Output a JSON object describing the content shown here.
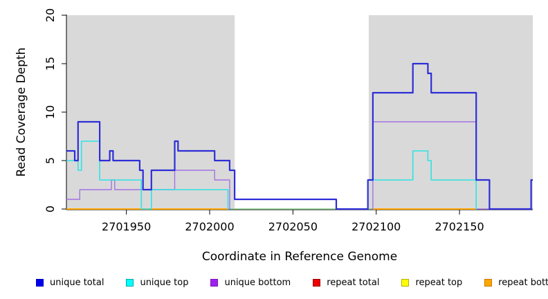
{
  "figure": {
    "xlabel": "Coordinate in Reference Genome",
    "ylabel": "Read Coverage Depth"
  },
  "chart_data": {
    "type": "line",
    "step": true,
    "title": "",
    "xlabel": "Coordinate in Reference Genome",
    "ylabel": "Read Coverage Depth",
    "xlim": [
      2701914,
      2702194
    ],
    "ylim": [
      0,
      20
    ],
    "xticks": [
      2701950,
      2702000,
      2702050,
      2702100,
      2702150
    ],
    "yticks": [
      0,
      5,
      10,
      15,
      20
    ],
    "grid": false,
    "background_color": "#ffffff",
    "shaded_region_color": "#d9d9d9",
    "shaded_regions": [
      {
        "x0": 2701914,
        "x1": 2702015
      },
      {
        "x0": 2702095.5,
        "x1": 2702194
      }
    ],
    "series": [
      {
        "name": "baseline",
        "in_legend": false,
        "color": "#85ca85",
        "width": 1.6,
        "runs": [
          [
            2702011,
            2702098,
            0
          ]
        ]
      },
      {
        "name": "repeat total",
        "in_legend": true,
        "color": "#ee0000",
        "width": 1.4,
        "runs": [
          [
            2701914,
            2702011,
            0
          ],
          [
            2702098,
            2702160,
            0
          ]
        ]
      },
      {
        "name": "repeat top",
        "in_legend": true,
        "color": "#ffff00",
        "width": 1.4,
        "runs": [
          [
            2701914,
            2702011,
            0
          ],
          [
            2702098,
            2702160,
            0
          ]
        ]
      },
      {
        "name": "repeat bottom",
        "in_legend": true,
        "color": "#ffa500",
        "width": 2.0,
        "runs": [
          [
            2701914,
            2702011,
            0
          ],
          [
            2702098,
            2702160,
            0
          ]
        ]
      },
      {
        "name": "unique bottom",
        "in_legend": true,
        "color": "#a273e2",
        "width": 1.4,
        "runs": [
          [
            2701914,
            2701922,
            1
          ],
          [
            2701922,
            2701941,
            2
          ],
          [
            2701941,
            2701943,
            3
          ],
          [
            2701943,
            2701979,
            2
          ],
          [
            2701979,
            2702003,
            4
          ],
          [
            2702003,
            2702012,
            3
          ],
          [
            2702012,
            2702012.5,
            0
          ],
          [
            2702097.5,
            2702098,
            0
          ],
          [
            2702098,
            2702160,
            9
          ],
          [
            2702160,
            2702194,
            0
          ]
        ]
      },
      {
        "name": "unique top",
        "in_legend": true,
        "color": "#2fe2e2",
        "width": 1.6,
        "runs": [
          [
            2701914,
            2701921,
            5
          ],
          [
            2701921,
            2701923,
            4
          ],
          [
            2701923,
            2701934,
            7
          ],
          [
            2701934,
            2701959,
            3
          ],
          [
            2701959,
            2701965,
            0
          ],
          [
            2701965,
            2702011,
            2
          ],
          [
            2702011,
            2702011.5,
            0
          ],
          [
            2702094.5,
            2702095,
            0
          ],
          [
            2702095,
            2702122,
            3
          ],
          [
            2702122,
            2702131,
            6
          ],
          [
            2702131,
            2702133,
            5
          ],
          [
            2702133,
            2702160,
            3
          ],
          [
            2702160,
            2702160.5,
            0
          ]
        ]
      },
      {
        "name": "unique total",
        "in_legend": true,
        "color": "#2d2dd8",
        "width": 2.2,
        "runs": [
          [
            2701914,
            2701919,
            6
          ],
          [
            2701919,
            2701921,
            5
          ],
          [
            2701921,
            2701934,
            9
          ],
          [
            2701934,
            2701940,
            5
          ],
          [
            2701940,
            2701942,
            6
          ],
          [
            2701942,
            2701958,
            5
          ],
          [
            2701958,
            2701960,
            4
          ],
          [
            2701960,
            2701965,
            2
          ],
          [
            2701965,
            2701979,
            4
          ],
          [
            2701979,
            2701981,
            7
          ],
          [
            2701981,
            2702003,
            6
          ],
          [
            2702003,
            2702012,
            5
          ],
          [
            2702012,
            2702015,
            4
          ],
          [
            2702015,
            2702076,
            1
          ],
          [
            2702076,
            2702095,
            0
          ],
          [
            2702095,
            2702098,
            3
          ],
          [
            2702098,
            2702122,
            12
          ],
          [
            2702122,
            2702131,
            15
          ],
          [
            2702131,
            2702133,
            14
          ],
          [
            2702133,
            2702160,
            12
          ],
          [
            2702160,
            2702168,
            3
          ],
          [
            2702168,
            2702193,
            0
          ],
          [
            2702193,
            2702194,
            3
          ]
        ]
      }
    ],
    "legend": [
      {
        "label": "unique total",
        "fill": "#0000ee",
        "border": "#0000b0"
      },
      {
        "label": "unique top",
        "fill": "#00ffff",
        "border": "#00aaaa"
      },
      {
        "label": "unique bottom",
        "fill": "#a020f0",
        "border": "#7716b4"
      },
      {
        "label": "repeat total",
        "fill": "#ee0000",
        "border": "#990000"
      },
      {
        "label": "repeat top",
        "fill": "#ffff00",
        "border": "#b0b000"
      },
      {
        "label": "repeat bottom",
        "fill": "#ffa500",
        "border": "#c07c00"
      }
    ],
    "legend_position": "bottom",
    "axis_color": "#000000",
    "tick_label_fontsize": 16,
    "axis_label_fontsize": 17
  }
}
